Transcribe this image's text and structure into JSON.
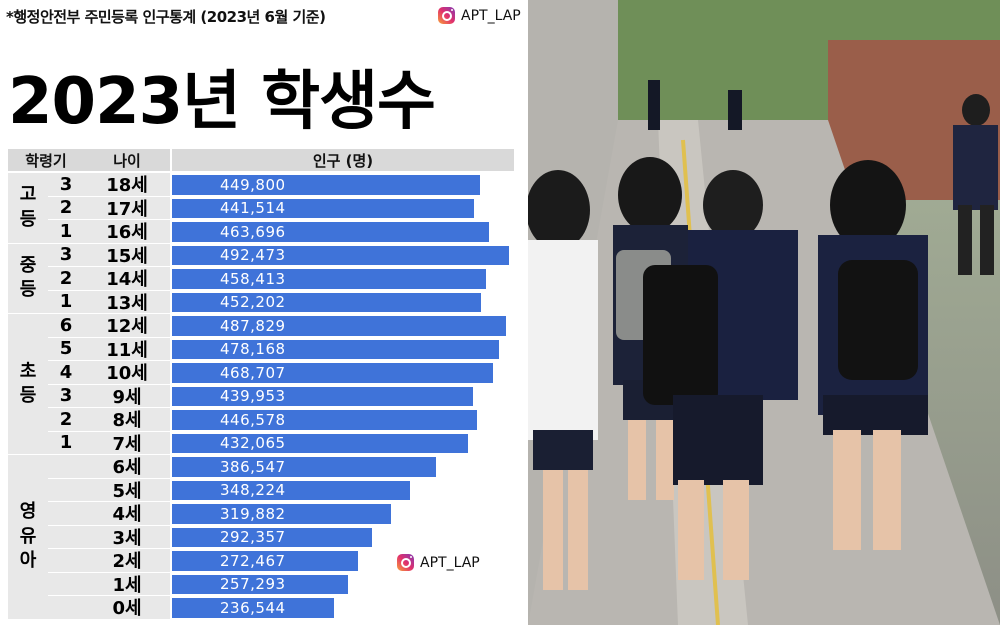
{
  "header": {
    "source": "*행정안전부 주민등록 인구통계 (2023년 6월 기준)",
    "handle": "APT_LAP",
    "title": "2023년 학생수"
  },
  "watermark": {
    "handle": "APT_LAP",
    "icon": "instagram-icon"
  },
  "colors": {
    "bar": "#3f73d9",
    "header_bg": "#d9d9d9",
    "cell_bg": "#e8e8e8"
  },
  "chart_data": {
    "type": "bar",
    "orientation": "horizontal",
    "title": "2023년 학생수",
    "columns": [
      "학령기",
      "나이",
      "인구 (명)"
    ],
    "groups": [
      {
        "label": "고등",
        "rows": 3
      },
      {
        "label": "중등",
        "rows": 3
      },
      {
        "label": "초등",
        "rows": 6
      },
      {
        "label": "영유아",
        "rows": 7
      }
    ],
    "grades": [
      "3",
      "2",
      "1",
      "3",
      "2",
      "1",
      "6",
      "5",
      "4",
      "3",
      "2",
      "1",
      "",
      "",
      "",
      "",
      "",
      "",
      ""
    ],
    "categories": [
      "18세",
      "17세",
      "16세",
      "15세",
      "14세",
      "13세",
      "12세",
      "11세",
      "10세",
      "9세",
      "8세",
      "7세",
      "6세",
      "5세",
      "4세",
      "3세",
      "2세",
      "1세",
      "0세"
    ],
    "values": [
      449800,
      441514,
      463696,
      492473,
      458413,
      452202,
      487829,
      478168,
      468707,
      439953,
      446578,
      432065,
      386547,
      348224,
      319882,
      292357,
      272467,
      257293,
      236544
    ],
    "labels": [
      "449,800",
      "441,514",
      "463,696",
      "492,473",
      "458,413",
      "452,202",
      "487,829",
      "478,168",
      "468,707",
      "439,953",
      "446,578",
      "432,065",
      "386,547",
      "348,224",
      "319,882",
      "292,357",
      "272,467",
      "257,293",
      "236,544"
    ],
    "xlim": [
      0,
      500000
    ]
  }
}
